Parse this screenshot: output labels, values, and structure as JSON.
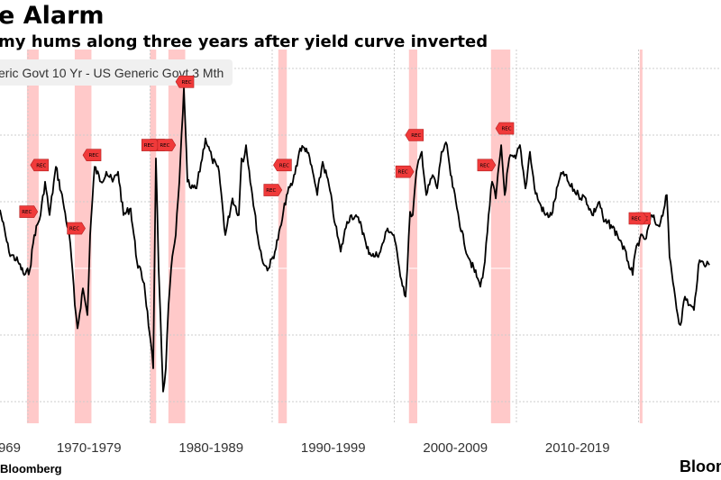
{
  "header": {
    "title": "e Alarm",
    "subtitle": "my hums along three years after yield curve inverted"
  },
  "footer": {
    "source": "Bloomberg",
    "logo": "Bloom"
  },
  "colors": {
    "line": "#000000",
    "recession_shade": "#ffc9c9",
    "rec_marker": "#f03a3a",
    "legend_bg": "#f0f0f0",
    "grid": "#cccccc"
  },
  "chart_data": {
    "type": "line",
    "title": "",
    "xlabel": "",
    "ylabel": "",
    "legend": {
      "label": "eric Govt 10 Yr - US Generic Govt 3 Mth",
      "placement": "top-left"
    },
    "grid": true,
    "y_tick_labels_visible": false,
    "y_gridlines": [
      6,
      4,
      2,
      0,
      -2,
      -4
    ],
    "ylim": [
      -4.9,
      6.6
    ],
    "xlim": [
      1967.7,
      2026.3
    ],
    "x_tick_labels": [
      {
        "label": "969",
        "decade": 1960
      },
      {
        "label": "1970-1979",
        "decade": 1970
      },
      {
        "label": "1980-1989",
        "decade": 1980
      },
      {
        "label": "1990-1999",
        "decade": 1990
      },
      {
        "label": "2000-2009",
        "decade": 2000
      },
      {
        "label": "2010-2019",
        "decade": 2010
      }
    ],
    "decade_boundaries": [
      1970,
      1980,
      1990,
      2000,
      2010,
      2020
    ],
    "recessions": [
      [
        1969.92,
        1970.88
      ],
      [
        1973.83,
        1975.2
      ],
      [
        1980.0,
        1980.5
      ],
      [
        1981.5,
        1982.88
      ],
      [
        1990.5,
        1991.2
      ],
      [
        2001.2,
        2001.88
      ],
      [
        2007.92,
        2009.5
      ],
      [
        2020.1,
        2020.3
      ]
    ],
    "rec_markers": [
      {
        "x": 1970.5,
        "y": 3.1,
        "label": "REC",
        "dir": "left"
      },
      {
        "x": 1970.5,
        "y": 1.7,
        "label": "REC",
        "dir": "right"
      },
      {
        "x": 1974.8,
        "y": 3.4,
        "label": "REC",
        "dir": "left"
      },
      {
        "x": 1974.4,
        "y": 1.2,
        "label": "REC",
        "dir": "right"
      },
      {
        "x": 1980.0,
        "y": 3.7,
        "label": "REC",
        "dir": "left"
      },
      {
        "x": 1980.5,
        "y": 3.7,
        "label": "REC",
        "dir": "right"
      },
      {
        "x": 1981.8,
        "y": 3.7,
        "label": "REC",
        "dir": "right"
      },
      {
        "x": 1982.4,
        "y": 5.6,
        "label": "REC",
        "dir": "left"
      },
      {
        "x": 1990.4,
        "y": 3.1,
        "label": "REC",
        "dir": "left"
      },
      {
        "x": 1990.5,
        "y": 2.35,
        "label": "REC",
        "dir": "right"
      },
      {
        "x": 2001.2,
        "y": 4.0,
        "label": "REC",
        "dir": "left"
      },
      {
        "x": 2001.3,
        "y": 2.9,
        "label": "REC",
        "dir": "right"
      },
      {
        "x": 2008.6,
        "y": 4.2,
        "label": "REC",
        "dir": "left"
      },
      {
        "x": 2008.0,
        "y": 3.1,
        "label": "REC",
        "dir": "right"
      },
      {
        "x": 2019.8,
        "y": 1.5,
        "label": "REC",
        "dir": "left"
      },
      {
        "x": 2020.4,
        "y": 1.5,
        "label": "REC",
        "dir": "right"
      }
    ],
    "series": [
      {
        "x": [
          1967.71,
          1968.45,
          1969.19,
          1969.7,
          1970.15,
          1970.52,
          1971.03,
          1971.4,
          1971.77,
          1972.29,
          1972.88,
          1973.47,
          1973.84,
          1974.06,
          1974.5,
          1974.87,
          1975.09,
          1975.46,
          1975.98,
          1976.42,
          1976.94,
          1977.38,
          1977.82,
          1978.41,
          1978.93,
          1979.52,
          1979.96,
          1980.26,
          1980.48,
          1980.7,
          1980.85,
          1981.07,
          1981.29,
          1981.51,
          1981.73,
          1982.1,
          1982.4,
          1982.77,
          1983.06,
          1983.36,
          1983.8,
          1984.54,
          1985.06,
          1985.65,
          1986.16,
          1986.75,
          1987.27,
          1987.49,
          1987.64,
          1987.86,
          1988.38,
          1988.89,
          1989.34,
          1989.7,
          1990.22,
          1990.74,
          1991.18,
          1991.7,
          1992.29,
          1992.8,
          1993.32,
          1993.69,
          1994.13,
          1994.65,
          1995.17,
          1995.61,
          1996.13,
          1996.49,
          1997.23,
          1997.75,
          1998.34,
          1998.86,
          1999.45,
          1999.96,
          2000.41,
          2000.92,
          2001.07,
          2001.29,
          2001.51,
          2001.81,
          2002.25,
          2002.62,
          2003.14,
          2003.51,
          2003.87,
          2004.32,
          2004.61,
          2005.13,
          2005.72,
          2006.24,
          2006.83,
          2007.05,
          2007.42,
          2007.72,
          2008.01,
          2008.31,
          2008.75,
          2009.04,
          2009.41,
          2009.93,
          2010.29,
          2010.74,
          2011.11,
          2011.48,
          2011.84,
          2012.36,
          2012.88,
          2013.47,
          2013.84,
          2014.35,
          2015.09,
          2015.68,
          2016.2,
          2016.79,
          2017.16,
          2017.75,
          2018.27,
          2018.63,
          2019.15,
          2019.52,
          2019.74,
          2020.11,
          2020.63,
          2021.07,
          2021.51,
          2021.81,
          2022.32,
          2022.54,
          2022.91,
          2023.21,
          2023.43,
          2023.8,
          2024.17,
          2024.54,
          2024.91,
          2025.28,
          2025.8
        ],
        "values": [
          1.76,
          0.49,
          0.2,
          -0.2,
          -0.05,
          1.0,
          1.6,
          2.6,
          1.6,
          3.05,
          2.0,
          0.75,
          -1.1,
          -1.8,
          -0.6,
          -1.4,
          1.0,
          3.05,
          2.6,
          2.9,
          2.6,
          2.9,
          1.6,
          1.8,
          0.2,
          -0.45,
          -1.95,
          -3.0,
          3.3,
          0.0,
          -1.4,
          -3.7,
          -3.0,
          -1.1,
          0.0,
          1.0,
          2.6,
          5.4,
          2.6,
          2.4,
          2.4,
          3.9,
          3.3,
          2.9,
          1.0,
          2.1,
          1.6,
          3.3,
          3.2,
          3.7,
          2.2,
          0.75,
          0.1,
          0.0,
          0.5,
          1.3,
          2.2,
          2.6,
          3.6,
          3.6,
          2.9,
          2.2,
          3.2,
          2.5,
          1.3,
          0.5,
          1.4,
          1.6,
          1.4,
          0.6,
          0.35,
          0.5,
          1.2,
          1.0,
          0.0,
          -0.85,
          0.0,
          1.7,
          1.6,
          2.9,
          3.5,
          2.2,
          2.8,
          2.4,
          3.5,
          3.7,
          2.8,
          1.8,
          0.75,
          0.2,
          -0.3,
          -0.55,
          0.2,
          1.6,
          2.6,
          2.1,
          3.7,
          2.2,
          3.3,
          3.3,
          3.7,
          2.4,
          3.5,
          2.4,
          2.0,
          1.6,
          1.6,
          2.6,
          2.9,
          2.5,
          2.2,
          2.1,
          1.6,
          2.0,
          1.4,
          1.3,
          1.0,
          0.75,
          0.2,
          -0.2,
          0.5,
          0.9,
          0.9,
          1.6,
          1.3,
          1.4,
          2.2,
          0.35,
          -0.6,
          -1.4,
          -1.7,
          -0.85,
          -1.1,
          -1.25,
          0.1,
          0.2,
          0.1
        ]
      }
    ]
  }
}
